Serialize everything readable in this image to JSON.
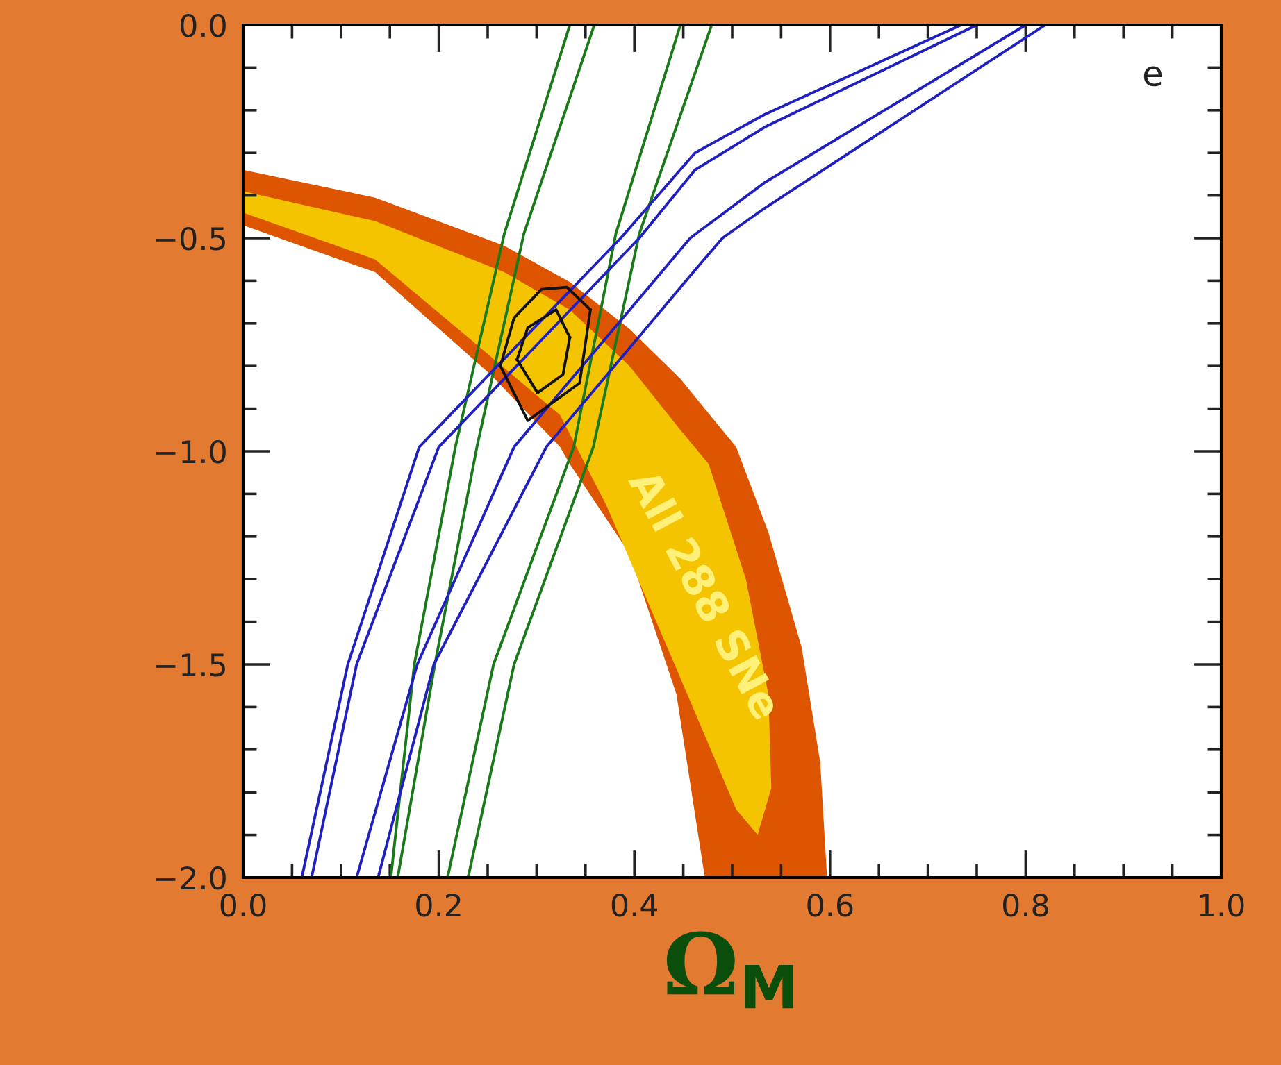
{
  "chart_data": {
    "type": "line",
    "xlabel": "Ω$_{M}$",
    "annotations": [
      "e",
      "All 288 SNe"
    ],
    "xlim": [
      0,
      1
    ],
    "ylim": [
      -2,
      0
    ],
    "xticks": [
      {
        "value": 0,
        "label": "0.0"
      },
      0.2,
      0.4,
      0.6,
      0.8,
      {
        "value": 1,
        "label": "1.0"
      }
    ],
    "yticks": [
      {
        "value": -2,
        "label": "−2.0"
      },
      {
        "value": -1.5,
        "label": "−1.5"
      },
      {
        "value": -1,
        "label": "−1.0"
      },
      {
        "value": -0.5,
        "label": "−0.5"
      },
      {
        "value": 0,
        "label": "0.0"
      }
    ],
    "grid": false,
    "legend": false,
    "series": [
      {
        "type": "area",
        "color": "#dd5500",
        "x": [
          0,
          0.135,
          0.267,
          0.334,
          0.395,
          0.447,
          0.504,
          0.537,
          0.571,
          0.59,
          0.597,
          0.472,
          0.443,
          0.395,
          0.334,
          0.324,
          0.253,
          0.135,
          0
        ],
        "values": [
          -0.34,
          -0.405,
          -0.518,
          -0.603,
          -0.713,
          -0.83,
          -0.99,
          -1.19,
          -1.46,
          -1.73,
          -2.0,
          -2.0,
          -1.57,
          -1.24,
          -1.03,
          -0.99,
          -0.82,
          -0.58,
          -0.47
        ]
      },
      {
        "type": "area",
        "color": "#f5c400",
        "x": [
          0,
          0.135,
          0.267,
          0.334,
          0.395,
          0.447,
          0.476,
          0.514,
          0.537,
          0.54,
          0.526,
          0.504,
          0.443,
          0.372,
          0.324,
          0.23,
          0.135,
          0
        ],
        "values": [
          -0.39,
          -0.46,
          -0.58,
          -0.668,
          -0.8,
          -0.95,
          -1.03,
          -1.3,
          -1.57,
          -1.79,
          -1.9,
          -1.84,
          -1.51,
          -1.13,
          -0.915,
          -0.733,
          -0.55,
          -0.44
        ]
      },
      {
        "color": "#1a7a1a",
        "x": [
          0.151,
          0.175,
          0.217,
          0.267,
          0.334
        ],
        "values": [
          -2,
          -1.5,
          -0.99,
          -0.49,
          0
        ]
      },
      {
        "color": "#1a7a1a",
        "x": [
          0.158,
          0.196,
          0.239,
          0.287,
          0.359
        ],
        "values": [
          -2,
          -1.5,
          -0.99,
          -0.49,
          0
        ]
      },
      {
        "color": "#1a7a1a",
        "x": [
          0.209,
          0.256,
          0.338,
          0.381,
          0.447
        ],
        "values": [
          -2,
          -1.5,
          -0.99,
          -0.49,
          0
        ]
      },
      {
        "color": "#1a7a1a",
        "x": [
          0.23,
          0.277,
          0.358,
          0.405,
          0.479
        ],
        "values": [
          -2,
          -1.5,
          -0.99,
          -0.49,
          0
        ]
      },
      {
        "color": "#2020c0",
        "x": [
          0.06,
          0.107,
          0.18,
          0.386,
          0.462,
          0.533,
          0.734
        ],
        "values": [
          -2,
          -1.5,
          -0.99,
          -0.5,
          -0.3,
          -0.21,
          0
        ]
      },
      {
        "color": "#2020c0",
        "x": [
          0.07,
          0.116,
          0.2,
          0.405,
          0.462,
          0.533,
          0.75
        ],
        "values": [
          -2,
          -1.5,
          -0.99,
          -0.5,
          -0.34,
          -0.24,
          0
        ]
      },
      {
        "color": "#2020c0",
        "x": [
          0.116,
          0.178,
          0.277,
          0.457,
          0.533,
          0.8
        ],
        "values": [
          -2,
          -1.5,
          -0.99,
          -0.5,
          -0.37,
          0
        ]
      },
      {
        "color": "#2020c0",
        "x": [
          0.138,
          0.195,
          0.31,
          0.462,
          0.49,
          0.533,
          0.82
        ],
        "values": [
          -2,
          -1.5,
          -0.99,
          -0.575,
          -0.5,
          -0.43,
          0
        ]
      },
      {
        "color": "#111111",
        "x": [
          0.263,
          0.277,
          0.305,
          0.331,
          0.355
        ],
        "values": [
          -0.8,
          -0.687,
          -0.62,
          -0.615,
          -0.668
        ]
      },
      {
        "color": "#111111",
        "x": [
          0.263,
          0.291,
          0.344,
          0.355
        ],
        "values": [
          -0.8,
          -0.928,
          -0.84,
          -0.668
        ]
      },
      {
        "color": "#111111",
        "x": [
          0.28,
          0.291,
          0.32,
          0.334
        ],
        "values": [
          -0.785,
          -0.71,
          -0.668,
          -0.733
        ]
      },
      {
        "color": "#111111",
        "x": [
          0.28,
          0.301,
          0.327,
          0.334
        ],
        "values": [
          -0.785,
          -0.863,
          -0.82,
          -0.733
        ]
      }
    ]
  }
}
